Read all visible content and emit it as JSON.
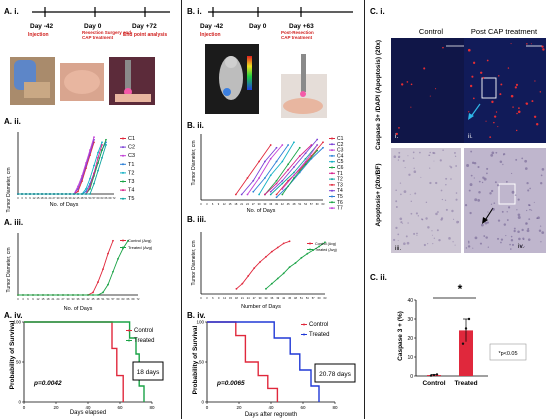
{
  "panels": {
    "A": {
      "label_i": "A. i.",
      "timeline": {
        "days": [
          "Day -42",
          "Day 0",
          "Day +72"
        ],
        "captions": [
          "Injection",
          "Resection Surgery and CAP treatment",
          "End point analysis"
        ]
      },
      "label_ii": "A. ii.",
      "label_iii": "A. iii.",
      "label_iv": "A. iv.",
      "ii_ylabel": "Tumor Diameter, cm",
      "ii_xlabel": "No. of Days",
      "ii_legend": [
        "C1",
        "C2",
        "C3",
        "T1",
        "T2",
        "T3",
        "T4",
        "T5"
      ],
      "iii_ylabel": "Tumor Diameter, cm",
      "iii_xlabel": "No. of Days",
      "iii_legend": [
        "Control (Avg)",
        "Treated (Avg)"
      ],
      "iv_ylabel": "Probability of Survival",
      "iv_xlabel": "Days elapsed",
      "iv_legend": [
        "Control",
        "Treated"
      ],
      "iv_pvalue": "p=0.0042",
      "iv_days_box": "18 days"
    },
    "B": {
      "label_i": "B. i.",
      "timeline": {
        "days": [
          "Day -42",
          "Day 0",
          "Day +63"
        ],
        "captions": [
          "Injection",
          "Post-Resection CAP treatment"
        ]
      },
      "label_ii": "B. ii.",
      "label_iii": "B. iii.",
      "label_iv": "B. iv.",
      "ii_ylabel": "Tumor Diameter, cm",
      "ii_xlabel": "No. of Days",
      "ii_legend": [
        "C1",
        "C2",
        "C3",
        "C4",
        "C5",
        "C6",
        "T1",
        "T2",
        "T3",
        "T4",
        "T5",
        "T6",
        "T7"
      ],
      "iii_ylabel": "Tumor Diameter, cm",
      "iii_xlabel": "Number of Days",
      "iii_legend": [
        "Control (Avg)",
        "Treated (Avg)"
      ],
      "iv_ylabel": "Probability of Survival",
      "iv_xlabel": "Days after regrowth",
      "iv_legend": [
        "Control",
        "Treated"
      ],
      "iv_pvalue": "p=0.0065",
      "iv_days_box": "20.78 days"
    },
    "C": {
      "label_i": "C. i.",
      "col_control": "Control",
      "col_post": "Post CAP treatment",
      "row1_label": "Caspase 3+ /DAPI (Apoptosis) (20x)",
      "row2_label": "Apoptosis+ (20x/BF)",
      "img_labels": [
        "i.",
        "ii.",
        "iii.",
        "iv."
      ],
      "label_ii": "C. ii.",
      "bar_ylabel": "Caspase 3 + (%)",
      "bar_categories": [
        "Control",
        "Treated"
      ],
      "bar_significance": "*",
      "bar_pvalue_note": "*p<0.05"
    }
  },
  "chart_data": [
    {
      "type": "line",
      "panel": "A.ii",
      "ylabel": "Tumor Diameter, cm",
      "xlabel": "No. of Days",
      "x": [
        0,
        3,
        6,
        9,
        12,
        15,
        18,
        21,
        24,
        27,
        30,
        33,
        36,
        39,
        42,
        45,
        48,
        51,
        54,
        57,
        60,
        63,
        66,
        69,
        72
      ],
      "xlim": [
        0,
        72
      ],
      "ylim": [
        0,
        1.2
      ],
      "series": [
        {
          "name": "C1",
          "color": "#e0283c",
          "values": [
            0,
            0,
            0,
            0,
            0,
            0,
            0,
            0,
            0,
            0,
            0,
            0,
            0,
            0,
            0,
            0.05,
            0.25,
            0.5,
            0.75,
            1.0,
            null,
            null,
            null,
            null,
            null
          ]
        },
        {
          "name": "C2",
          "color": "#7a3fd6",
          "values": [
            0,
            0,
            0,
            0,
            0,
            0,
            0,
            0,
            0,
            0,
            0,
            0,
            0,
            0,
            0,
            0.1,
            0.3,
            0.55,
            0.8,
            1.05,
            null,
            null,
            null,
            null,
            null
          ]
        },
        {
          "name": "C3",
          "color": "#c23fd6",
          "values": [
            0,
            0,
            0,
            0,
            0,
            0,
            0,
            0,
            0,
            0,
            0,
            0,
            0,
            0,
            0,
            0.15,
            0.35,
            0.6,
            0.85,
            1.1,
            null,
            null,
            null,
            null,
            null
          ]
        },
        {
          "name": "T1",
          "color": "#2b7fd6",
          "values": [
            0,
            0,
            0,
            0,
            0,
            0,
            0,
            0,
            0,
            0,
            0,
            0,
            0,
            0,
            0,
            0,
            0,
            0.05,
            0.2,
            0.4,
            0.6,
            0.85,
            1.0,
            null,
            null
          ]
        },
        {
          "name": "T2",
          "color": "#12b0c4",
          "values": [
            0,
            0,
            0,
            0,
            0,
            0,
            0,
            0,
            0,
            0,
            0,
            0,
            0,
            0,
            0,
            0,
            0,
            0.1,
            0.3,
            0.55,
            0.8,
            1.0,
            null,
            null,
            null
          ]
        },
        {
          "name": "T3",
          "color": "#1aa346",
          "values": [
            0,
            0,
            0,
            0,
            0,
            0,
            0,
            0,
            0,
            0,
            0,
            0,
            0,
            0,
            0,
            0,
            0,
            0,
            0.1,
            0.35,
            0.6,
            0.85,
            1.05,
            null,
            null
          ]
        },
        {
          "name": "T4",
          "color": "#d61f8a",
          "values": [
            0,
            0,
            0,
            0,
            0,
            0,
            0,
            0,
            0,
            0,
            0,
            0,
            0,
            0,
            0,
            0,
            0,
            0,
            0.15,
            0.4,
            0.7,
            0.95,
            null,
            null,
            null
          ]
        },
        {
          "name": "T5",
          "color": "#0fa3a0",
          "values": [
            0,
            0,
            0,
            0,
            0,
            0,
            0,
            0,
            0,
            0,
            0,
            0,
            0,
            0,
            0,
            0,
            0,
            0,
            0,
            0.2,
            0.45,
            0.7,
            0.95,
            null,
            null
          ]
        }
      ]
    },
    {
      "type": "line",
      "panel": "A.iii",
      "ylabel": "Tumor Diameter, cm",
      "xlabel": "No. of Days",
      "x": [
        0,
        3,
        6,
        9,
        12,
        15,
        18,
        21,
        24,
        27,
        30,
        33,
        36,
        39,
        42,
        45,
        48,
        51,
        54,
        57,
        60,
        63,
        66,
        69,
        72
      ],
      "xlim": [
        0,
        72
      ],
      "ylim": [
        0,
        1.2
      ],
      "series": [
        {
          "name": "Control (Avg)",
          "color": "#e0283c",
          "values": [
            0,
            0,
            0,
            0,
            0,
            0,
            0,
            0,
            0,
            0,
            0,
            0,
            0,
            0,
            0,
            0.05,
            0.25,
            0.5,
            0.8,
            1.05,
            null,
            null,
            null,
            null,
            null
          ]
        },
        {
          "name": "Treated (Avg)",
          "color": "#1aa346",
          "values": [
            0,
            0,
            0,
            0,
            0,
            0,
            0,
            0,
            0,
            0,
            0,
            0,
            0,
            0,
            0,
            0,
            0,
            0.05,
            0.2,
            0.45,
            0.7,
            0.9,
            1.05,
            null,
            null
          ]
        }
      ]
    },
    {
      "type": "line",
      "panel": "A.iv",
      "step": true,
      "ylabel": "Probability of Survival",
      "xlabel": "Days elapsed",
      "xlim": [
        0,
        80
      ],
      "ylim": [
        0,
        100
      ],
      "xticks": [
        0,
        20,
        40,
        60,
        80
      ],
      "yticks": [
        0,
        50,
        100
      ],
      "series": [
        {
          "name": "Control",
          "color": "#e0283c",
          "x": [
            0,
            55,
            55,
            58,
            58,
            62,
            62
          ],
          "values": [
            100,
            100,
            67,
            67,
            33,
            33,
            0
          ]
        },
        {
          "name": "Treated",
          "color": "#1aa346",
          "x": [
            0,
            66,
            66,
            70,
            70,
            72,
            72,
            75,
            75
          ],
          "values": [
            100,
            100,
            80,
            80,
            60,
            60,
            20,
            20,
            0
          ]
        }
      ]
    },
    {
      "type": "line",
      "panel": "B.ii",
      "ylabel": "Tumor Diameter, cm",
      "xlabel": "No. of Days",
      "xlim": [
        0,
        63
      ],
      "ylim": [
        0,
        1.2
      ],
      "series": [
        {
          "name": "C1",
          "color": "#e0283c",
          "x": [
            18,
            24,
            30,
            36
          ],
          "values": [
            0.1,
            0.4,
            0.7,
            1.0
          ]
        },
        {
          "name": "C2",
          "color": "#7a3fd6",
          "x": [
            21,
            27,
            33,
            39
          ],
          "values": [
            0.1,
            0.35,
            0.7,
            0.95
          ]
        },
        {
          "name": "C3",
          "color": "#c23fd6",
          "x": [
            24,
            30,
            36,
            42
          ],
          "values": [
            0.1,
            0.4,
            0.75,
            1.0
          ]
        },
        {
          "name": "C4",
          "color": "#2b7fd6",
          "x": [
            27,
            33,
            39,
            45
          ],
          "values": [
            0.15,
            0.4,
            0.7,
            1.0
          ]
        },
        {
          "name": "C5",
          "color": "#12b0c4",
          "x": [
            30,
            36,
            42,
            48
          ],
          "values": [
            0.1,
            0.45,
            0.7,
            1.05
          ]
        },
        {
          "name": "C6",
          "color": "#1aa346",
          "x": [
            33,
            39,
            45,
            51
          ],
          "values": [
            0.1,
            0.35,
            0.65,
            0.95
          ]
        },
        {
          "name": "T1",
          "color": "#d61f8a",
          "x": [
            33,
            39,
            45,
            51,
            57
          ],
          "values": [
            0.1,
            0.3,
            0.55,
            0.8,
            1.0
          ]
        },
        {
          "name": "T2",
          "color": "#0fa3a0",
          "x": [
            36,
            42,
            48,
            54,
            60
          ],
          "values": [
            0.1,
            0.3,
            0.5,
            0.75,
            1.0
          ]
        },
        {
          "name": "T3",
          "color": "#e0283c",
          "x": [
            39,
            45,
            51,
            57,
            63
          ],
          "values": [
            0.1,
            0.35,
            0.55,
            0.8,
            1.05
          ]
        },
        {
          "name": "T4",
          "color": "#7a3fd6",
          "x": [
            36,
            42,
            48,
            54,
            60
          ],
          "values": [
            0.15,
            0.35,
            0.6,
            0.85,
            1.1
          ]
        },
        {
          "name": "T5",
          "color": "#2b7fd6",
          "x": [
            39,
            45,
            51,
            57,
            63
          ],
          "values": [
            0.05,
            0.25,
            0.5,
            0.75,
            0.95
          ]
        },
        {
          "name": "T6",
          "color": "#1aa346",
          "x": [
            42,
            48,
            54,
            60
          ],
          "values": [
            0.1,
            0.4,
            0.65,
            0.9
          ]
        },
        {
          "name": "T7",
          "color": "#c23fd6",
          "x": [
            42,
            48,
            54,
            60
          ],
          "values": [
            0.2,
            0.45,
            0.7,
            1.0
          ]
        }
      ]
    },
    {
      "type": "line",
      "panel": "B.iii",
      "ylabel": "Tumor Diameter, cm",
      "xlabel": "Number of Days",
      "xlim": [
        0,
        63
      ],
      "ylim": [
        0,
        1.2
      ],
      "series": [
        {
          "name": "Control (Avg)",
          "color": "#e0283c",
          "x": [
            18,
            21,
            24,
            27,
            30,
            33,
            36,
            39,
            42,
            45
          ],
          "values": [
            0.1,
            0.2,
            0.35,
            0.5,
            0.62,
            0.72,
            0.82,
            0.9,
            0.98,
            1.02
          ]
        },
        {
          "name": "Treated (Avg)",
          "color": "#1aa346",
          "x": [
            33,
            36,
            39,
            42,
            45,
            48,
            51,
            54,
            57,
            60,
            63
          ],
          "values": [
            0.1,
            0.2,
            0.3,
            0.4,
            0.52,
            0.6,
            0.7,
            0.78,
            0.85,
            0.92,
            1.0
          ]
        }
      ]
    },
    {
      "type": "line",
      "panel": "B.iv",
      "step": true,
      "ylabel": "Probability of Survival",
      "xlabel": "Days after regrowth",
      "xlim": [
        0,
        80
      ],
      "ylim": [
        0,
        100
      ],
      "xticks": [
        0,
        20,
        40,
        60,
        80
      ],
      "yticks": [
        0,
        50,
        100
      ],
      "series": [
        {
          "name": "Control",
          "color": "#e0283c",
          "x": [
            0,
            18,
            18,
            24,
            24,
            32,
            32,
            38,
            38,
            44,
            44
          ],
          "values": [
            100,
            100,
            83,
            83,
            50,
            50,
            33,
            33,
            17,
            17,
            0
          ]
        },
        {
          "name": "Treated",
          "color": "#2038d6",
          "x": [
            0,
            42,
            42,
            52,
            52,
            58,
            58,
            65,
            65,
            70,
            70
          ],
          "values": [
            100,
            100,
            80,
            80,
            60,
            60,
            40,
            40,
            20,
            20,
            0
          ]
        }
      ]
    },
    {
      "type": "bar",
      "panel": "C.ii",
      "ylabel": "Caspase 3 + (%)",
      "categories": [
        "Control",
        "Treated"
      ],
      "values": [
        0.5,
        24
      ],
      "errors": [
        0.3,
        6
      ],
      "points": [
        [
          0.2,
          0.5,
          0.8
        ],
        [
          17,
          25,
          30
        ]
      ],
      "ylim": [
        0,
        40
      ],
      "yticks": [
        0,
        10,
        20,
        30,
        40
      ],
      "colors": [
        "#e0283c",
        "#e0283c"
      ]
    }
  ]
}
